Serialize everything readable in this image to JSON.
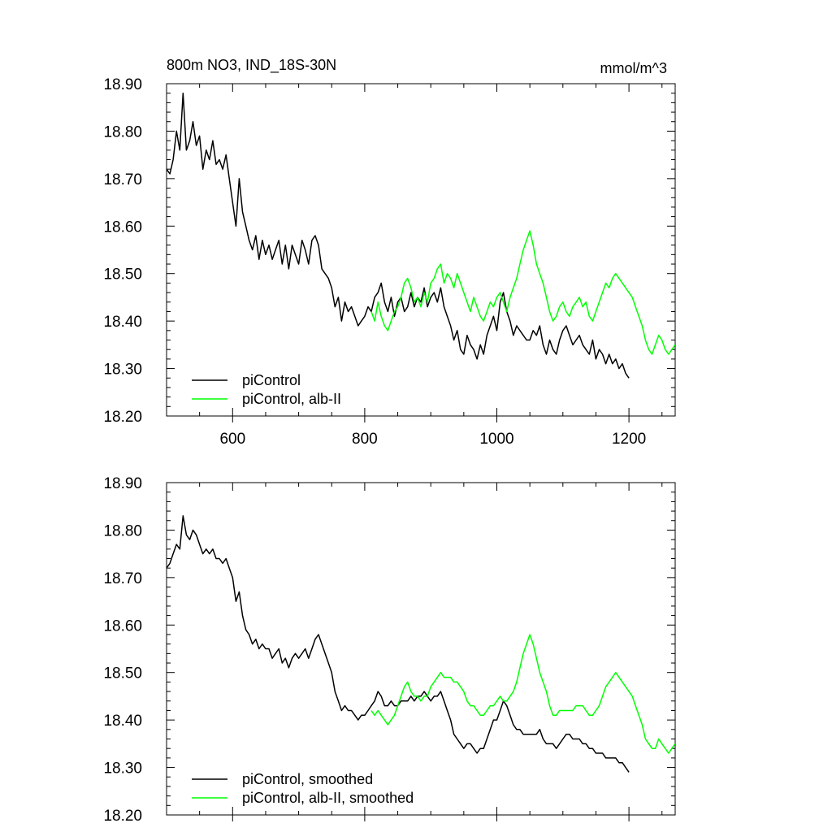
{
  "chart_data": [
    {
      "type": "line",
      "title": "800m NO3, IND_18S-30N",
      "units": "mmol/m^3",
      "xlim": [
        500,
        1270
      ],
      "ylim": [
        18.2,
        18.9
      ],
      "x_ticks": [
        600,
        800,
        1000,
        1200
      ],
      "x_tick_labels": [
        "600",
        "800",
        "1000",
        "1200"
      ],
      "y_ticks": [
        18.2,
        18.3,
        18.4,
        18.5,
        18.6,
        18.7,
        18.8,
        18.9
      ],
      "y_tick_labels": [
        "18.20",
        "18.30",
        "18.40",
        "18.50",
        "18.60",
        "18.70",
        "18.80",
        "18.90"
      ],
      "legend_position": "bottom-left",
      "series": [
        {
          "name": "piControl",
          "color": "#000000",
          "x": [
            500,
            505,
            510,
            515,
            520,
            525,
            530,
            535,
            540,
            545,
            550,
            555,
            560,
            565,
            570,
            575,
            580,
            585,
            590,
            595,
            600,
            605,
            610,
            615,
            620,
            625,
            630,
            635,
            640,
            645,
            650,
            655,
            660,
            665,
            670,
            675,
            680,
            685,
            690,
            695,
            700,
            705,
            710,
            715,
            720,
            725,
            730,
            735,
            740,
            745,
            750,
            755,
            760,
            765,
            770,
            775,
            780,
            785,
            790,
            795,
            800,
            805,
            810,
            815,
            820,
            825,
            830,
            835,
            840,
            845,
            850,
            855,
            860,
            865,
            870,
            875,
            880,
            885,
            890,
            895,
            900,
            905,
            910,
            915,
            920,
            925,
            930,
            935,
            940,
            945,
            950,
            955,
            960,
            965,
            970,
            975,
            980,
            985,
            990,
            995,
            1000,
            1005,
            1010,
            1015,
            1020,
            1025,
            1030,
            1035,
            1040,
            1045,
            1050,
            1055,
            1060,
            1065,
            1070,
            1075,
            1080,
            1085,
            1090,
            1095,
            1100,
            1105,
            1110,
            1115,
            1120,
            1125,
            1130,
            1135,
            1140,
            1145,
            1150,
            1155,
            1160,
            1165,
            1170,
            1175,
            1180,
            1185,
            1190,
            1195,
            1200
          ],
          "values": [
            18.72,
            18.71,
            18.74,
            18.8,
            18.76,
            18.88,
            18.76,
            18.78,
            18.82,
            18.77,
            18.79,
            18.72,
            18.76,
            18.74,
            18.78,
            18.73,
            18.74,
            18.72,
            18.75,
            18.7,
            18.65,
            18.6,
            18.7,
            18.63,
            18.6,
            18.57,
            18.55,
            18.58,
            18.53,
            18.57,
            18.54,
            18.56,
            18.53,
            18.55,
            18.57,
            18.52,
            18.56,
            18.51,
            18.56,
            18.54,
            18.52,
            18.57,
            18.55,
            18.52,
            18.57,
            18.58,
            18.56,
            18.51,
            18.5,
            18.49,
            18.47,
            18.43,
            18.45,
            18.4,
            18.44,
            18.42,
            18.43,
            18.41,
            18.39,
            18.4,
            18.41,
            18.43,
            18.42,
            18.45,
            18.46,
            18.48,
            18.44,
            18.42,
            18.45,
            18.41,
            18.44,
            18.45,
            18.42,
            18.43,
            18.46,
            18.43,
            18.45,
            18.44,
            18.47,
            18.43,
            18.45,
            18.46,
            18.44,
            18.47,
            18.43,
            18.41,
            18.39,
            18.36,
            18.38,
            18.34,
            18.33,
            18.37,
            18.35,
            18.34,
            18.32,
            18.35,
            18.33,
            18.37,
            18.39,
            18.41,
            18.38,
            18.44,
            18.46,
            18.42,
            18.4,
            18.37,
            18.39,
            18.38,
            18.37,
            18.36,
            18.36,
            18.38,
            18.37,
            18.39,
            18.35,
            18.33,
            18.36,
            18.34,
            18.33,
            18.36,
            18.38,
            18.39,
            18.37,
            18.35,
            18.36,
            18.37,
            18.35,
            18.34,
            18.33,
            18.36,
            18.32,
            18.34,
            18.33,
            18.31,
            18.33,
            18.31,
            18.32,
            18.3,
            18.31,
            18.29,
            18.28
          ]
        },
        {
          "name": "piControl, alb-II",
          "color": "#00ff00",
          "x": [
            810,
            815,
            820,
            825,
            830,
            835,
            840,
            845,
            850,
            855,
            860,
            865,
            870,
            875,
            880,
            885,
            890,
            895,
            900,
            905,
            910,
            915,
            920,
            925,
            930,
            935,
            940,
            945,
            950,
            955,
            960,
            965,
            970,
            975,
            980,
            985,
            990,
            995,
            1000,
            1005,
            1010,
            1015,
            1020,
            1025,
            1030,
            1035,
            1040,
            1045,
            1050,
            1055,
            1060,
            1065,
            1070,
            1075,
            1080,
            1085,
            1090,
            1095,
            1100,
            1105,
            1110,
            1115,
            1120,
            1125,
            1130,
            1135,
            1140,
            1145,
            1150,
            1155,
            1160,
            1165,
            1170,
            1175,
            1180,
            1185,
            1190,
            1195,
            1200,
            1205,
            1210,
            1215,
            1220,
            1225,
            1230,
            1235,
            1240,
            1245,
            1250,
            1255,
            1260,
            1265,
            1270
          ],
          "values": [
            18.42,
            18.4,
            18.44,
            18.41,
            18.39,
            18.38,
            18.4,
            18.42,
            18.43,
            18.45,
            18.48,
            18.49,
            18.47,
            18.44,
            18.45,
            18.43,
            18.46,
            18.44,
            18.48,
            18.49,
            18.51,
            18.52,
            18.48,
            18.5,
            18.49,
            18.47,
            18.5,
            18.48,
            18.46,
            18.44,
            18.42,
            18.45,
            18.43,
            18.41,
            18.4,
            18.42,
            18.44,
            18.43,
            18.45,
            18.46,
            18.44,
            18.42,
            18.45,
            18.47,
            18.49,
            18.52,
            18.55,
            18.57,
            18.59,
            18.56,
            18.52,
            18.5,
            18.48,
            18.45,
            18.42,
            18.4,
            18.41,
            18.43,
            18.44,
            18.42,
            18.41,
            18.43,
            18.44,
            18.45,
            18.43,
            18.44,
            18.41,
            18.4,
            18.42,
            18.44,
            18.46,
            18.48,
            18.47,
            18.49,
            18.5,
            18.49,
            18.48,
            18.47,
            18.46,
            18.45,
            18.43,
            18.41,
            18.39,
            18.36,
            18.34,
            18.33,
            18.35,
            18.37,
            18.36,
            18.34,
            18.33,
            18.34,
            18.35
          ]
        }
      ]
    },
    {
      "type": "line",
      "title": "",
      "units": "",
      "xlim": [
        500,
        1270
      ],
      "ylim": [
        18.2,
        18.9
      ],
      "x_ticks": [
        600,
        800,
        1000,
        1200
      ],
      "y_ticks": [
        18.2,
        18.3,
        18.4,
        18.5,
        18.6,
        18.7,
        18.8,
        18.9
      ],
      "y_tick_labels": [
        "18.20",
        "18.30",
        "18.40",
        "18.50",
        "18.60",
        "18.70",
        "18.80",
        "18.90"
      ],
      "legend_position": "bottom-left",
      "series": [
        {
          "name": "piControl, smoothed",
          "color": "#000000",
          "x": [
            500,
            505,
            510,
            515,
            520,
            525,
            530,
            535,
            540,
            545,
            550,
            555,
            560,
            565,
            570,
            575,
            580,
            585,
            590,
            595,
            600,
            605,
            610,
            615,
            620,
            625,
            630,
            635,
            640,
            645,
            650,
            655,
            660,
            665,
            670,
            675,
            680,
            685,
            690,
            695,
            700,
            705,
            710,
            715,
            720,
            725,
            730,
            735,
            740,
            745,
            750,
            755,
            760,
            765,
            770,
            775,
            780,
            785,
            790,
            795,
            800,
            805,
            810,
            815,
            820,
            825,
            830,
            835,
            840,
            845,
            850,
            855,
            860,
            865,
            870,
            875,
            880,
            885,
            890,
            895,
            900,
            905,
            910,
            915,
            920,
            925,
            930,
            935,
            940,
            945,
            950,
            955,
            960,
            965,
            970,
            975,
            980,
            985,
            990,
            995,
            1000,
            1005,
            1010,
            1015,
            1020,
            1025,
            1030,
            1035,
            1040,
            1045,
            1050,
            1055,
            1060,
            1065,
            1070,
            1075,
            1080,
            1085,
            1090,
            1095,
            1100,
            1105,
            1110,
            1115,
            1120,
            1125,
            1130,
            1135,
            1140,
            1145,
            1150,
            1155,
            1160,
            1165,
            1170,
            1175,
            1180,
            1185,
            1190,
            1195,
            1200
          ],
          "values": [
            18.72,
            18.73,
            18.75,
            18.77,
            18.76,
            18.83,
            18.79,
            18.78,
            18.8,
            18.79,
            18.77,
            18.75,
            18.76,
            18.75,
            18.76,
            18.74,
            18.74,
            18.73,
            18.74,
            18.72,
            18.7,
            18.65,
            18.67,
            18.62,
            18.59,
            18.58,
            18.56,
            18.57,
            18.55,
            18.56,
            18.55,
            18.55,
            18.53,
            18.54,
            18.55,
            18.52,
            18.53,
            18.51,
            18.53,
            18.54,
            18.53,
            18.54,
            18.55,
            18.53,
            18.55,
            18.57,
            18.58,
            18.56,
            18.54,
            18.52,
            18.5,
            18.46,
            18.44,
            18.42,
            18.43,
            18.42,
            18.42,
            18.41,
            18.4,
            18.41,
            18.41,
            18.42,
            18.43,
            18.44,
            18.46,
            18.45,
            18.43,
            18.43,
            18.44,
            18.43,
            18.43,
            18.44,
            18.44,
            18.44,
            18.45,
            18.44,
            18.45,
            18.45,
            18.46,
            18.45,
            18.44,
            18.45,
            18.45,
            18.46,
            18.44,
            18.42,
            18.4,
            18.37,
            18.36,
            18.35,
            18.34,
            18.35,
            18.35,
            18.34,
            18.33,
            18.34,
            18.34,
            18.36,
            18.38,
            18.4,
            18.4,
            18.42,
            18.44,
            18.43,
            18.41,
            18.39,
            18.38,
            18.38,
            18.37,
            18.37,
            18.37,
            18.37,
            18.37,
            18.38,
            18.36,
            18.35,
            18.35,
            18.35,
            18.34,
            18.35,
            18.36,
            18.37,
            18.37,
            18.36,
            18.36,
            18.36,
            18.35,
            18.35,
            18.34,
            18.34,
            18.33,
            18.33,
            18.33,
            18.32,
            18.32,
            18.32,
            18.32,
            18.31,
            18.31,
            18.3,
            18.29
          ]
        },
        {
          "name": "piControl, alb-II, smoothed",
          "color": "#00ff00",
          "x": [
            810,
            815,
            820,
            825,
            830,
            835,
            840,
            845,
            850,
            855,
            860,
            865,
            870,
            875,
            880,
            885,
            890,
            895,
            900,
            905,
            910,
            915,
            920,
            925,
            930,
            935,
            940,
            945,
            950,
            955,
            960,
            965,
            970,
            975,
            980,
            985,
            990,
            995,
            1000,
            1005,
            1010,
            1015,
            1020,
            1025,
            1030,
            1035,
            1040,
            1045,
            1050,
            1055,
            1060,
            1065,
            1070,
            1075,
            1080,
            1085,
            1090,
            1095,
            1100,
            1105,
            1110,
            1115,
            1120,
            1125,
            1130,
            1135,
            1140,
            1145,
            1150,
            1155,
            1160,
            1165,
            1170,
            1175,
            1180,
            1185,
            1190,
            1195,
            1200,
            1205,
            1210,
            1215,
            1220,
            1225,
            1230,
            1235,
            1240,
            1245,
            1250,
            1255,
            1260,
            1265,
            1270
          ],
          "values": [
            18.42,
            18.41,
            18.42,
            18.41,
            18.4,
            18.39,
            18.4,
            18.41,
            18.43,
            18.45,
            18.47,
            18.48,
            18.46,
            18.45,
            18.45,
            18.44,
            18.45,
            18.45,
            18.47,
            18.48,
            18.49,
            18.5,
            18.49,
            18.49,
            18.49,
            18.48,
            18.48,
            18.47,
            18.46,
            18.44,
            18.43,
            18.43,
            18.42,
            18.41,
            18.41,
            18.42,
            18.43,
            18.43,
            18.44,
            18.45,
            18.44,
            18.44,
            18.45,
            18.46,
            18.48,
            18.51,
            18.54,
            18.56,
            18.58,
            18.56,
            18.53,
            18.5,
            18.48,
            18.46,
            18.43,
            18.41,
            18.41,
            18.42,
            18.42,
            18.42,
            18.42,
            18.42,
            18.43,
            18.43,
            18.43,
            18.42,
            18.41,
            18.41,
            18.42,
            18.43,
            18.45,
            18.47,
            18.48,
            18.49,
            18.5,
            18.49,
            18.48,
            18.47,
            18.46,
            18.45,
            18.43,
            18.41,
            18.39,
            18.36,
            18.35,
            18.34,
            18.34,
            18.36,
            18.35,
            18.34,
            18.33,
            18.34,
            18.35
          ]
        }
      ]
    }
  ]
}
